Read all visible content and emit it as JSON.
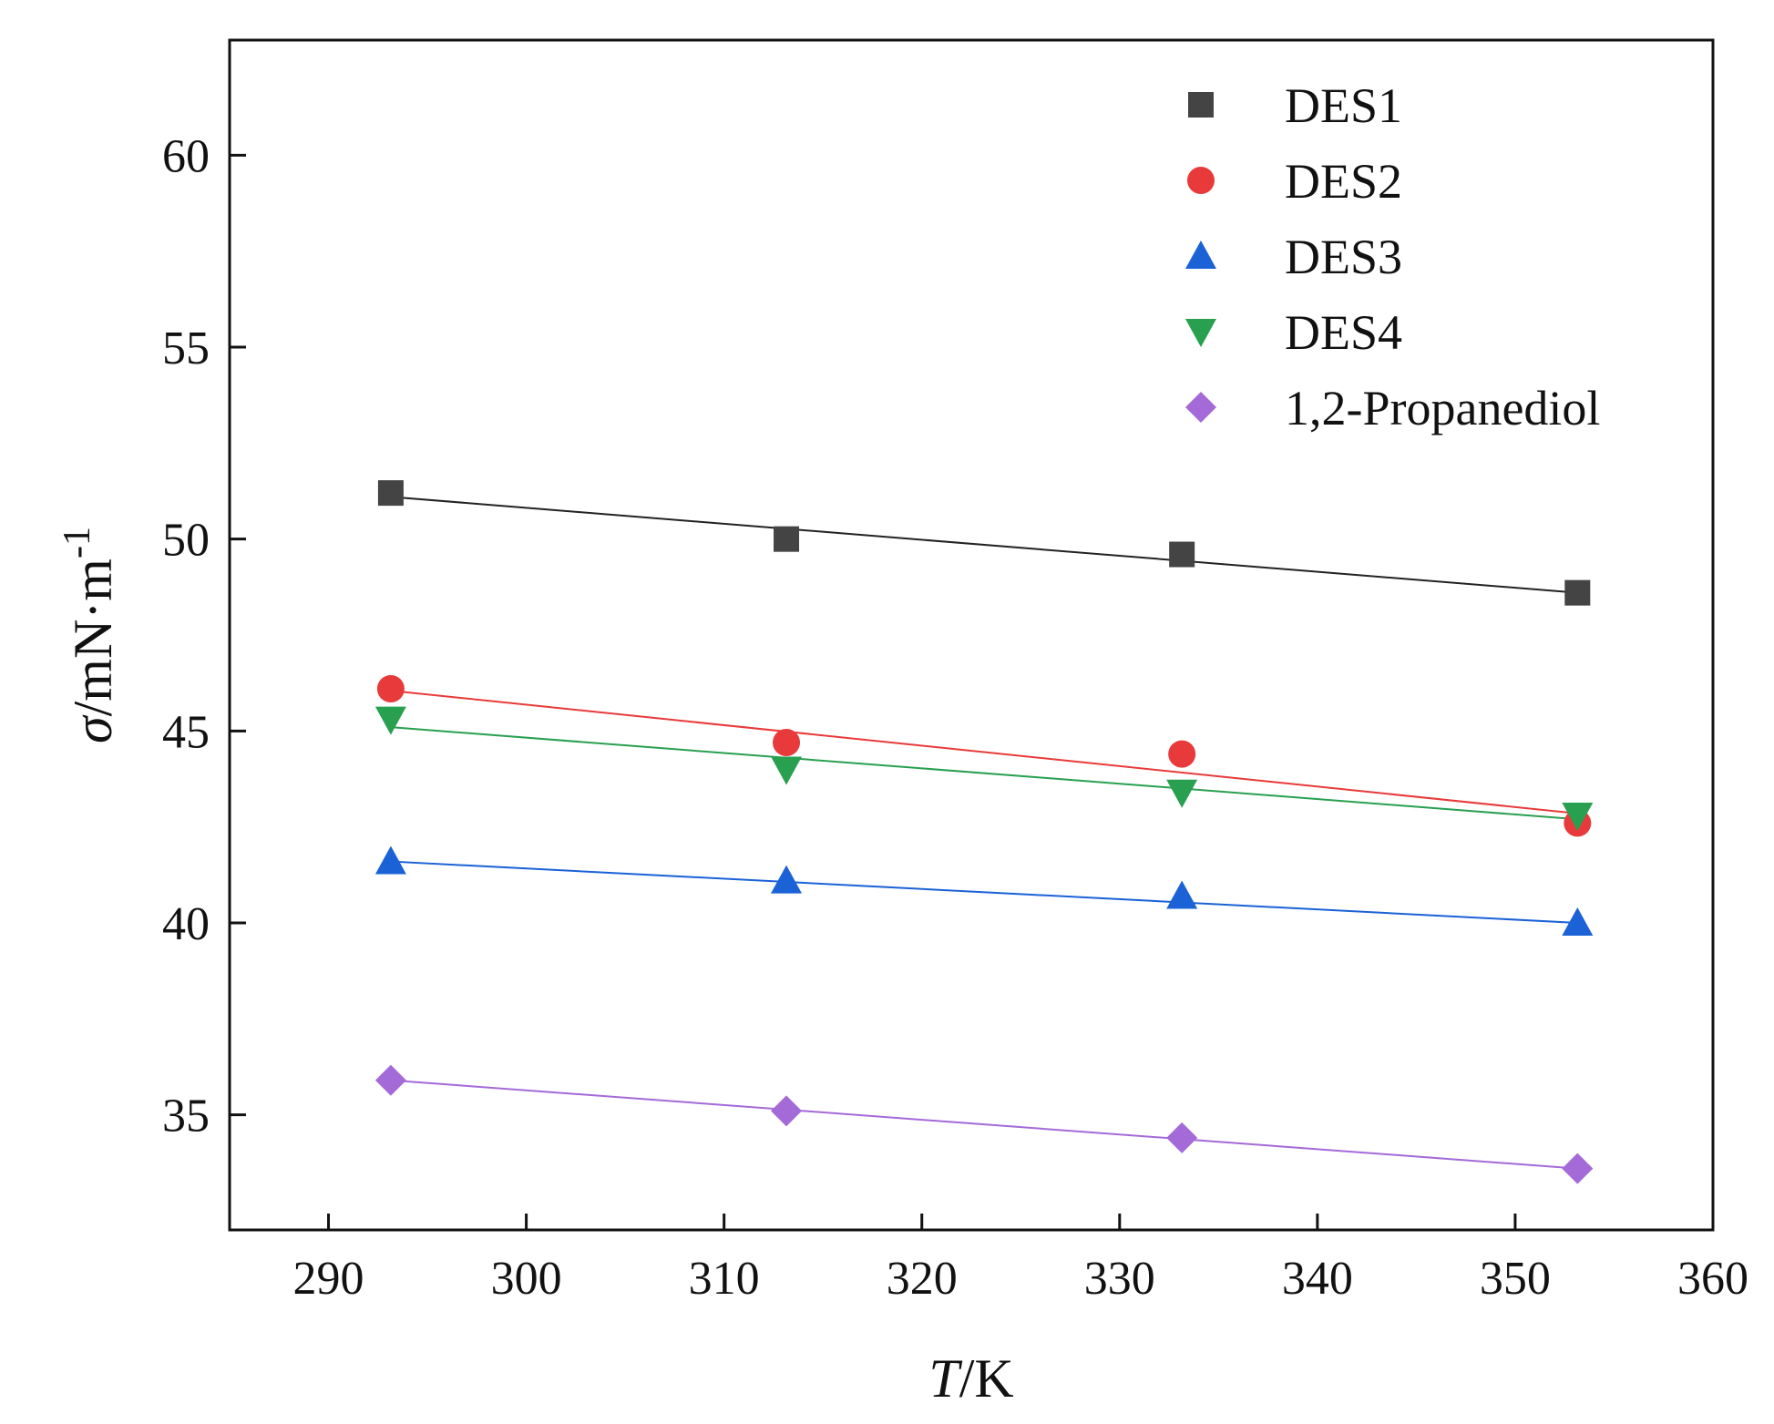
{
  "chart_data": {
    "type": "scatter",
    "title": "",
    "xlabel": {
      "var": "T",
      "rest": "/K"
    },
    "ylabel": {
      "var": "σ",
      "rest": "/mN·m",
      "sup": "-1"
    },
    "xlim": [
      285,
      360
    ],
    "ylim": [
      32,
      63
    ],
    "xticks": [
      290,
      300,
      310,
      320,
      330,
      340,
      350,
      360
    ],
    "yticks": [
      35,
      40,
      45,
      50,
      55,
      60
    ],
    "grid": false,
    "legend_position": "top-right",
    "x": [
      293.15,
      313.15,
      333.15,
      353.15
    ],
    "series": [
      {
        "name": "DES1",
        "marker": "square",
        "color": "#444444",
        "values": [
          51.2,
          50.0,
          49.6,
          48.6
        ],
        "fit": [
          51.1,
          48.6
        ]
      },
      {
        "name": "DES2",
        "marker": "circle",
        "color": "#e83a3a",
        "values": [
          46.1,
          44.7,
          44.4,
          42.6
        ],
        "fit": [
          46.05,
          42.85
        ]
      },
      {
        "name": "DES3",
        "marker": "triangle-up",
        "color": "#1a62d6",
        "values": [
          41.6,
          41.1,
          40.7,
          40.0
        ],
        "fit": [
          41.6,
          40.0
        ]
      },
      {
        "name": "DES4",
        "marker": "triangle-down",
        "color": "#28a050",
        "values": [
          45.3,
          44.0,
          43.4,
          42.8
        ],
        "fit": [
          45.1,
          42.7
        ]
      },
      {
        "name": "1,2-Propanediol",
        "marker": "diamond",
        "color": "#a46ad8",
        "values": [
          35.9,
          35.1,
          34.4,
          33.6
        ],
        "fit": [
          35.9,
          33.6
        ]
      }
    ]
  }
}
